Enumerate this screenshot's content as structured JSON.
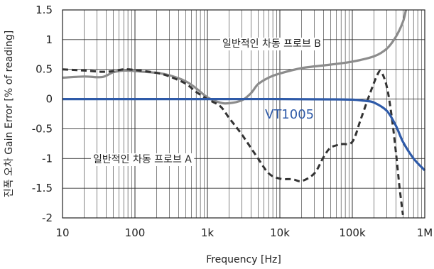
{
  "chart_data": {
    "type": "line",
    "title": "",
    "xlabel": "Frequency [Hz]",
    "ylabel": "진폭 오차 Gain Error [% of reading]",
    "x_scale": "log",
    "xlim": [
      10,
      1000000
    ],
    "ylim": [
      -2,
      1.5
    ],
    "grid": true,
    "x_ticks": [
      {
        "value": 10,
        "label": "10"
      },
      {
        "value": 100,
        "label": "100"
      },
      {
        "value": 1000,
        "label": "1k"
      },
      {
        "value": 10000,
        "label": "10k"
      },
      {
        "value": 100000,
        "label": "100k"
      },
      {
        "value": 1000000,
        "label": "1M"
      }
    ],
    "y_ticks": [
      {
        "value": 1.5,
        "label": "1.5"
      },
      {
        "value": 1,
        "label": "1"
      },
      {
        "value": 0.5,
        "label": "0.5"
      },
      {
        "value": 0,
        "label": "0"
      },
      {
        "value": -0.5,
        "label": "-0.5"
      },
      {
        "value": -1,
        "label": "-1"
      },
      {
        "value": -1.5,
        "label": "-1.5"
      },
      {
        "value": -2,
        "label": "-2"
      }
    ],
    "series": [
      {
        "name": "일반적인 차동 프로브 B",
        "color": "#8c8c8c",
        "style": "solid",
        "points": [
          [
            10,
            0.36
          ],
          [
            20,
            0.38
          ],
          [
            35,
            0.37
          ],
          [
            50,
            0.45
          ],
          [
            70,
            0.48
          ],
          [
            100,
            0.47
          ],
          [
            200,
            0.44
          ],
          [
            300,
            0.4
          ],
          [
            500,
            0.3
          ],
          [
            700,
            0.18
          ],
          [
            1000,
            0.03
          ],
          [
            1500,
            -0.06
          ],
          [
            2000,
            -0.07
          ],
          [
            3000,
            -0.02
          ],
          [
            4000,
            0.1
          ],
          [
            5000,
            0.25
          ],
          [
            7000,
            0.36
          ],
          [
            10000,
            0.43
          ],
          [
            20000,
            0.52
          ],
          [
            50000,
            0.58
          ],
          [
            100000,
            0.63
          ],
          [
            200000,
            0.72
          ],
          [
            300000,
            0.85
          ],
          [
            400000,
            1.05
          ],
          [
            500000,
            1.3
          ],
          [
            550000,
            1.5
          ]
        ]
      },
      {
        "name": "일반적인 차동 프로브 A",
        "color": "#333333",
        "style": "dashed",
        "points": [
          [
            10,
            0.5
          ],
          [
            20,
            0.48
          ],
          [
            35,
            0.46
          ],
          [
            50,
            0.47
          ],
          [
            70,
            0.5
          ],
          [
            100,
            0.49
          ],
          [
            200,
            0.44
          ],
          [
            300,
            0.38
          ],
          [
            500,
            0.26
          ],
          [
            700,
            0.12
          ],
          [
            1000,
            0.0
          ],
          [
            1500,
            -0.12
          ],
          [
            2000,
            -0.32
          ],
          [
            3000,
            -0.6
          ],
          [
            5000,
            -1.0
          ],
          [
            7000,
            -1.25
          ],
          [
            10000,
            -1.34
          ],
          [
            15000,
            -1.35
          ],
          [
            20000,
            -1.38
          ],
          [
            30000,
            -1.25
          ],
          [
            40000,
            -0.98
          ],
          [
            50000,
            -0.82
          ],
          [
            70000,
            -0.76
          ],
          [
            100000,
            -0.72
          ],
          [
            130000,
            -0.35
          ],
          [
            170000,
            0.05
          ],
          [
            220000,
            0.4
          ],
          [
            250000,
            0.46
          ],
          [
            300000,
            0.2
          ],
          [
            350000,
            -0.3
          ],
          [
            400000,
            -0.9
          ],
          [
            450000,
            -1.5
          ],
          [
            500000,
            -1.95
          ]
        ]
      },
      {
        "name": "VT1005",
        "color": "#2e5aa8",
        "style": "solid",
        "points": [
          [
            10,
            0.0
          ],
          [
            1000,
            0.0
          ],
          [
            10000,
            0.0
          ],
          [
            50000,
            -0.005
          ],
          [
            100000,
            -0.01
          ],
          [
            150000,
            -0.03
          ],
          [
            200000,
            -0.06
          ],
          [
            300000,
            -0.2
          ],
          [
            400000,
            -0.45
          ],
          [
            500000,
            -0.72
          ],
          [
            700000,
            -1.0
          ],
          [
            1000000,
            -1.2
          ]
        ]
      }
    ],
    "annotations": [
      {
        "text": "일반적인 차동 프로브 B",
        "series": 0
      },
      {
        "text": "일반적인 차동 프로브 A",
        "series": 1
      },
      {
        "text": "VT1005",
        "series": 2
      }
    ]
  }
}
